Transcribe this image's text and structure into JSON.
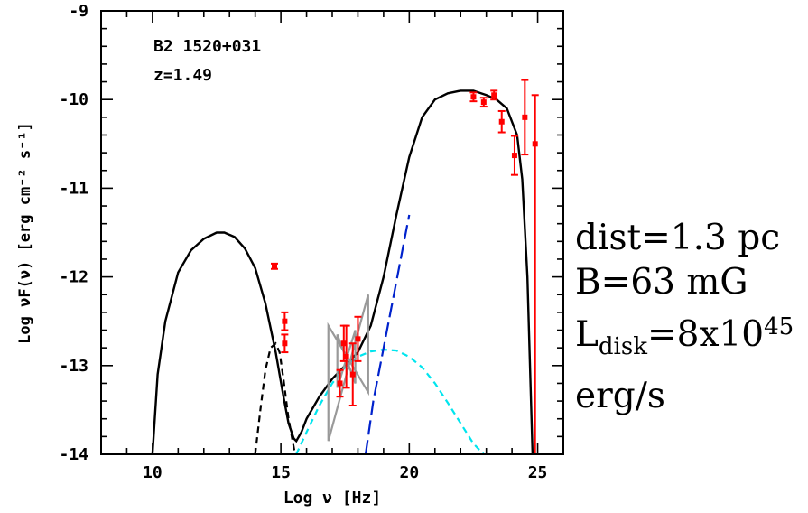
{
  "chart_data": {
    "type": "line",
    "source_name": "B2 1520+031",
    "redshift": "z=1.49",
    "xlabel": "Log ν [Hz]",
    "ylabel": "Log νF(ν) [erg cm⁻² s⁻¹]",
    "xlim": [
      8,
      26
    ],
    "ylim": [
      -14,
      -9
    ],
    "x_ticks": [
      "10",
      "15",
      "20",
      "25"
    ],
    "y_ticks": [
      "-9",
      "-10",
      "-11",
      "-12",
      "-13",
      "-14"
    ],
    "series": [
      {
        "role": "total model",
        "color": "#000000",
        "style": "solid",
        "x": [
          10.0,
          10.2,
          10.5,
          11.0,
          11.5,
          12.0,
          12.5,
          12.8,
          13.2,
          13.6,
          14.0,
          14.4,
          14.8,
          15.1,
          15.3,
          15.5,
          15.6,
          15.8,
          16.0,
          16.5,
          17.0,
          17.5,
          18.0,
          18.5,
          19.0,
          19.5,
          20.0,
          20.5,
          21.0,
          21.5,
          22.0,
          22.5,
          23.0,
          23.4,
          23.8,
          24.2,
          24.4,
          24.6,
          24.8
        ],
        "y": [
          -14.0,
          -13.1,
          -12.5,
          -11.95,
          -11.7,
          -11.57,
          -11.5,
          -11.5,
          -11.55,
          -11.68,
          -11.9,
          -12.3,
          -12.85,
          -13.35,
          -13.65,
          -13.82,
          -13.85,
          -13.75,
          -13.6,
          -13.35,
          -13.15,
          -13.0,
          -12.85,
          -12.55,
          -12.0,
          -11.3,
          -10.65,
          -10.2,
          -10.0,
          -9.93,
          -9.9,
          -9.9,
          -9.95,
          -10.0,
          -10.1,
          -10.4,
          -10.9,
          -12.0,
          -14.0
        ]
      },
      {
        "role": "accretion disk",
        "color": "#000000",
        "style": "dashed",
        "x": [
          14.0,
          14.2,
          14.4,
          14.6,
          14.8,
          14.95,
          15.1,
          15.3,
          15.55
        ],
        "y": [
          -14.0,
          -13.5,
          -13.05,
          -12.8,
          -12.75,
          -12.85,
          -13.15,
          -13.6,
          -14.0
        ]
      },
      {
        "role": "SSC",
        "color": "#00e5ee",
        "style": "dashed",
        "x": [
          15.6,
          16.0,
          16.5,
          17.0,
          17.5,
          18.0,
          18.5,
          19.0,
          19.5,
          20.0,
          20.5,
          21.0,
          21.5,
          22.0,
          22.5,
          22.9
        ],
        "y": [
          -14.0,
          -13.75,
          -13.45,
          -13.2,
          -13.02,
          -12.9,
          -12.84,
          -12.82,
          -12.83,
          -12.9,
          -13.02,
          -13.2,
          -13.42,
          -13.65,
          -13.88,
          -14.0
        ]
      },
      {
        "role": "external Compton",
        "color": "#0022cc",
        "style": "long-dashed",
        "x": [
          18.3,
          18.6,
          19.0,
          19.4,
          19.8,
          20.0
        ],
        "y": [
          -14.0,
          -13.4,
          -12.8,
          -12.2,
          -11.6,
          -11.3
        ]
      }
    ],
    "points": [
      {
        "x": 14.75,
        "y": -11.88,
        "err": 0.03
      },
      {
        "x": 15.15,
        "y": -12.5,
        "err": 0.1
      },
      {
        "x": 15.15,
        "y": -12.75,
        "err": 0.1
      },
      {
        "x": 17.3,
        "y": -13.2,
        "err": 0.15
      },
      {
        "x": 17.45,
        "y": -12.75,
        "err": 0.2
      },
      {
        "x": 17.55,
        "y": -12.9,
        "err": 0.35
      },
      {
        "x": 17.8,
        "y": -13.1,
        "err": 0.35
      },
      {
        "x": 18.0,
        "y": -12.7,
        "err": 0.25
      },
      {
        "x": 22.5,
        "y": -9.97,
        "err": 0.05
      },
      {
        "x": 22.9,
        "y": -10.03,
        "err": 0.05
      },
      {
        "x": 23.3,
        "y": -9.95,
        "err": 0.05
      },
      {
        "x": 23.6,
        "y": -10.25,
        "err": 0.12
      },
      {
        "x": 24.1,
        "y": -10.63,
        "err": 0.22
      },
      {
        "x": 24.5,
        "y": -10.2,
        "err": 0.42
      },
      {
        "x": 24.9,
        "y": -10.5,
        "err": 0.55,
        "lower_open": true
      }
    ],
    "xray_bowties": [
      {
        "x": [
          16.85,
          18.4
        ],
        "y_outer": [
          -12.55,
          -12.2
        ],
        "y_inner": [
          -13.85,
          -13.3
        ]
      },
      {
        "x": [
          17.2,
          17.9
        ],
        "y_outer": [
          -12.65,
          -12.6
        ],
        "y_inner": [
          -13.25,
          -13.2
        ]
      }
    ]
  },
  "annotations": {
    "dist": "dist=1.3 pc",
    "field": "B=63 mG",
    "ldisk_prefix": "L",
    "ldisk_sub": "disk",
    "ldisk_mid": "=8x10",
    "ldisk_sup": "45",
    "unit": "erg/s"
  },
  "colors": {
    "points": "#ff0000",
    "bowtie": "#999999"
  }
}
